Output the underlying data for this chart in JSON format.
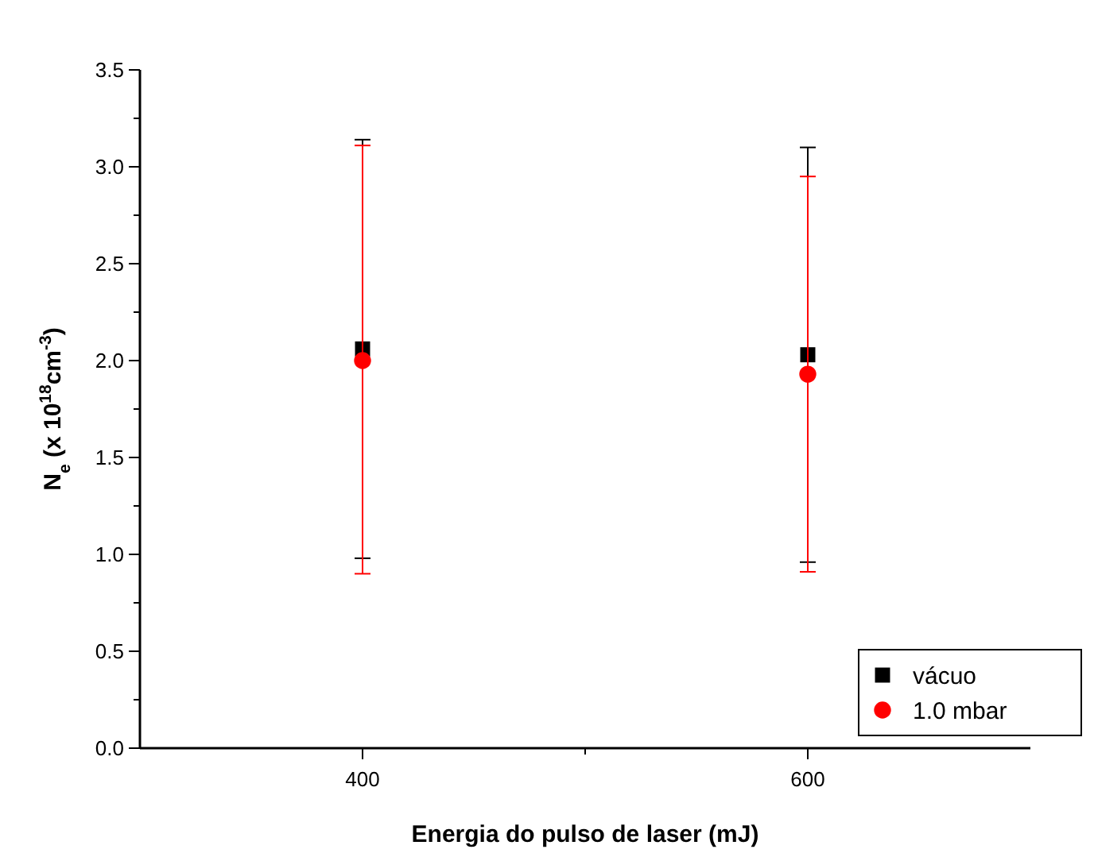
{
  "chart_data": {
    "type": "scatter",
    "xlabel": "Energia do pulso de laser (mJ)",
    "ylabel": "N$_{e}$ (x 10$^{18}$cm$^{-3}$)",
    "x": [
      400,
      600
    ],
    "series": [
      {
        "name": "vácuo",
        "color": "#000000",
        "marker": "square",
        "values": [
          2.06,
          2.03
        ],
        "errors": [
          [
            0.98,
            3.14
          ],
          [
            0.96,
            3.1
          ]
        ]
      },
      {
        "name": "1.0 mbar",
        "color": "#ff0000",
        "marker": "circle",
        "values": [
          2.0,
          1.93
        ],
        "errors": [
          [
            0.9,
            3.11
          ],
          [
            0.91,
            2.95
          ]
        ]
      }
    ],
    "xlim": [
      300,
      700
    ],
    "xticks": [
      400,
      {
        "value": 500,
        "label": null
      },
      600
    ],
    "ylim": [
      0,
      3.5
    ],
    "yticks": [
      {
        "value": 0,
        "label": "0.0"
      },
      {
        "value": 0.25,
        "label": null
      },
      {
        "value": 0.5,
        "label": "0.5"
      },
      {
        "value": 0.75,
        "label": null
      },
      {
        "value": 1,
        "label": "1.0"
      },
      {
        "value": 1.25,
        "label": null
      },
      {
        "value": 1.5,
        "label": "1.5"
      },
      {
        "value": 1.75,
        "label": null
      },
      {
        "value": 2,
        "label": "2.0"
      },
      {
        "value": 2.25,
        "label": null
      },
      {
        "value": 2.5,
        "label": "2.5"
      },
      {
        "value": 2.75,
        "label": null
      },
      {
        "value": 3,
        "label": "3.0"
      },
      {
        "value": 3.25,
        "label": null
      },
      {
        "value": 3.5,
        "label": "3.5"
      }
    ],
    "legend": "bottom right",
    "grid": false
  }
}
